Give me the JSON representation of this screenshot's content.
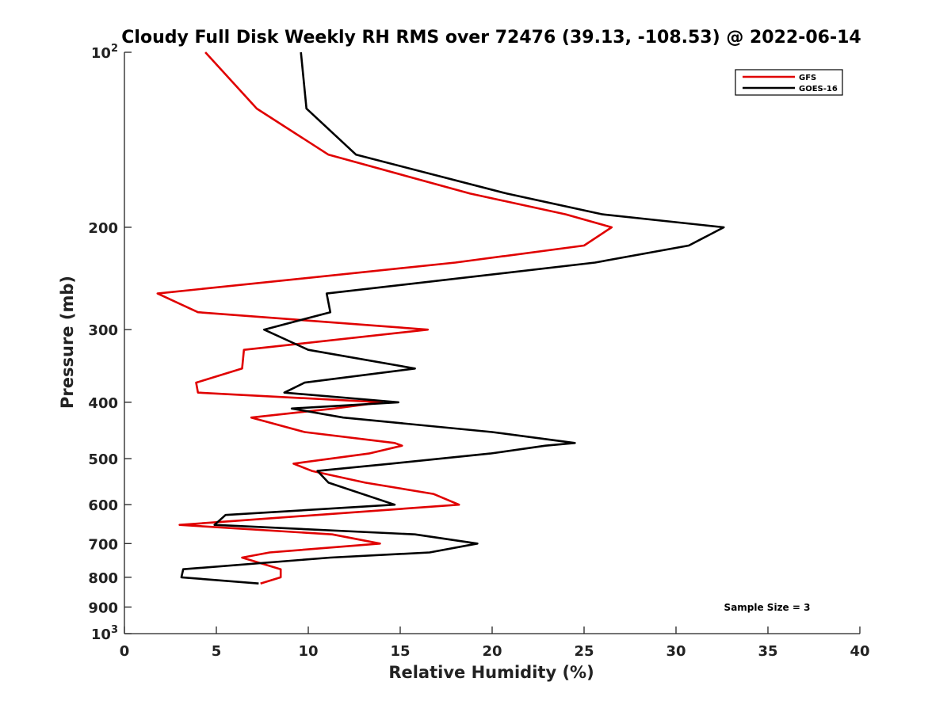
{
  "chart_data": {
    "type": "line",
    "title": "Cloudy Full Disk Weekly RH RMS over 72476 (39.13, -108.53) @ 2022-06-14",
    "xlabel": "Relative Humidity (%)",
    "ylabel": "Pressure (mb)",
    "xlim": [
      0,
      40
    ],
    "ylim": [
      100,
      1000
    ],
    "y_scale": "log",
    "y_inverted": true,
    "x_ticks": [
      0,
      5,
      10,
      15,
      20,
      25,
      30,
      35,
      40
    ],
    "x_tick_labels": [
      "0",
      "5",
      "10",
      "15",
      "20",
      "25",
      "30",
      "35",
      "40"
    ],
    "y_ticks": [
      {
        "value": 100,
        "base": "10",
        "exp": "2"
      },
      {
        "value": 200,
        "label": "200"
      },
      {
        "value": 300,
        "label": "300"
      },
      {
        "value": 400,
        "label": "400"
      },
      {
        "value": 500,
        "label": "500"
      },
      {
        "value": 600,
        "label": "600"
      },
      {
        "value": 700,
        "label": "700"
      },
      {
        "value": 800,
        "label": "800"
      },
      {
        "value": 900,
        "label": "900"
      },
      {
        "value": 1000,
        "base": "10",
        "exp": "3"
      }
    ],
    "grid": false,
    "legend_position": "top-right",
    "annotation": "Sample Size = 3",
    "series": [
      {
        "name": "GFS",
        "color": "#e00000",
        "points": [
          [
            4.4,
            100
          ],
          [
            7.2,
            125
          ],
          [
            11.1,
            150
          ],
          [
            18.8,
            175
          ],
          [
            24.0,
            190
          ],
          [
            26.5,
            200
          ],
          [
            25.0,
            215
          ],
          [
            18.0,
            230
          ],
          [
            1.8,
            260
          ],
          [
            4.0,
            280
          ],
          [
            16.5,
            300
          ],
          [
            6.5,
            325
          ],
          [
            6.4,
            350
          ],
          [
            3.9,
            370
          ],
          [
            4.0,
            385
          ],
          [
            14.0,
            400
          ],
          [
            11.4,
            410
          ],
          [
            6.9,
            425
          ],
          [
            9.8,
            450
          ],
          [
            14.7,
            470
          ],
          [
            15.1,
            475
          ],
          [
            13.3,
            490
          ],
          [
            9.2,
            510
          ],
          [
            10.2,
            525
          ],
          [
            13.1,
            550
          ],
          [
            16.8,
            575
          ],
          [
            18.2,
            600
          ],
          [
            6.0,
            640
          ],
          [
            3.0,
            650
          ],
          [
            11.3,
            675
          ],
          [
            13.9,
            700
          ],
          [
            7.9,
            725
          ],
          [
            6.4,
            740
          ],
          [
            8.5,
            775
          ],
          [
            8.5,
            800
          ],
          [
            7.4,
            820
          ]
        ]
      },
      {
        "name": "GOES-16",
        "color": "#000000",
        "points": [
          [
            9.6,
            100
          ],
          [
            9.9,
            125
          ],
          [
            12.6,
            150
          ],
          [
            20.8,
            175
          ],
          [
            26.0,
            190
          ],
          [
            32.6,
            200
          ],
          [
            30.7,
            215
          ],
          [
            25.6,
            230
          ],
          [
            11.0,
            260
          ],
          [
            11.2,
            280
          ],
          [
            7.6,
            300
          ],
          [
            10.0,
            325
          ],
          [
            15.8,
            350
          ],
          [
            9.8,
            370
          ],
          [
            8.7,
            385
          ],
          [
            14.9,
            400
          ],
          [
            9.1,
            410
          ],
          [
            11.9,
            425
          ],
          [
            20.0,
            450
          ],
          [
            24.5,
            470
          ],
          [
            22.9,
            475
          ],
          [
            19.9,
            490
          ],
          [
            14.5,
            510
          ],
          [
            10.5,
            525
          ],
          [
            11.1,
            550
          ],
          [
            14.7,
            600
          ],
          [
            5.5,
            625
          ],
          [
            4.9,
            650
          ],
          [
            15.8,
            675
          ],
          [
            19.2,
            700
          ],
          [
            16.6,
            725
          ],
          [
            11.2,
            740
          ],
          [
            3.2,
            775
          ],
          [
            3.1,
            800
          ],
          [
            7.3,
            820
          ]
        ]
      }
    ]
  }
}
